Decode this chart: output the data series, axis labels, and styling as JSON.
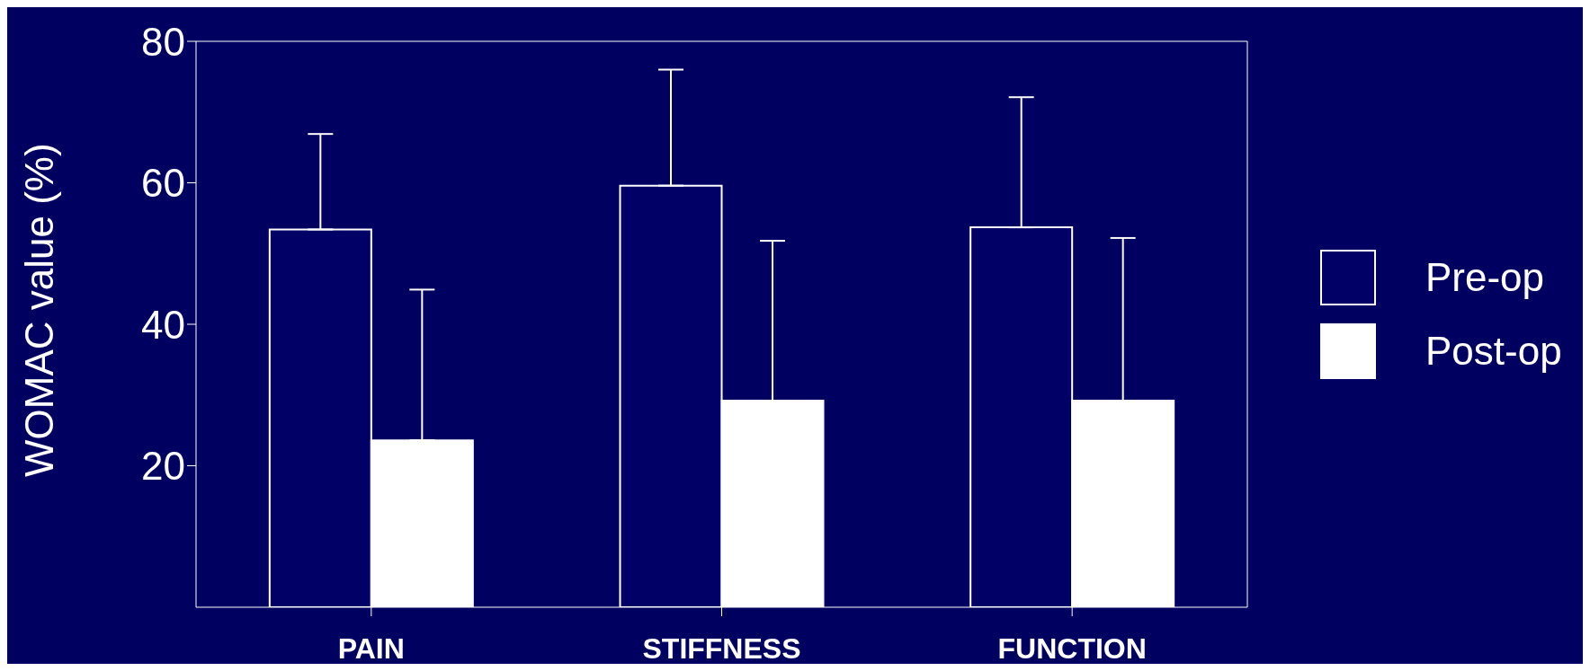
{
  "chart_data": {
    "type": "bar",
    "ylabel": "WOMAC value (%)",
    "categories": [
      "PAIN",
      "STIFFNESS",
      "FUNCTION"
    ],
    "series": [
      {
        "name": "Pre-op",
        "color": "#000066",
        "values": [
          53.4,
          59.6,
          53.7
        ],
        "errors": [
          [
            53.4,
            66.9
          ],
          [
            59.6,
            76
          ],
          [
            53.7,
            72.1
          ]
        ]
      },
      {
        "name": "Post-op",
        "color": "#ffffff",
        "values": [
          23.6,
          29.2,
          29.2
        ],
        "errors": [
          [
            23.6,
            44.9
          ],
          [
            29.2,
            51.8
          ],
          [
            29.2,
            52.2
          ]
        ]
      }
    ],
    "ylim": [
      0,
      80
    ],
    "yticks": [
      20,
      40,
      60,
      80
    ],
    "grid": false,
    "legend": "right"
  }
}
